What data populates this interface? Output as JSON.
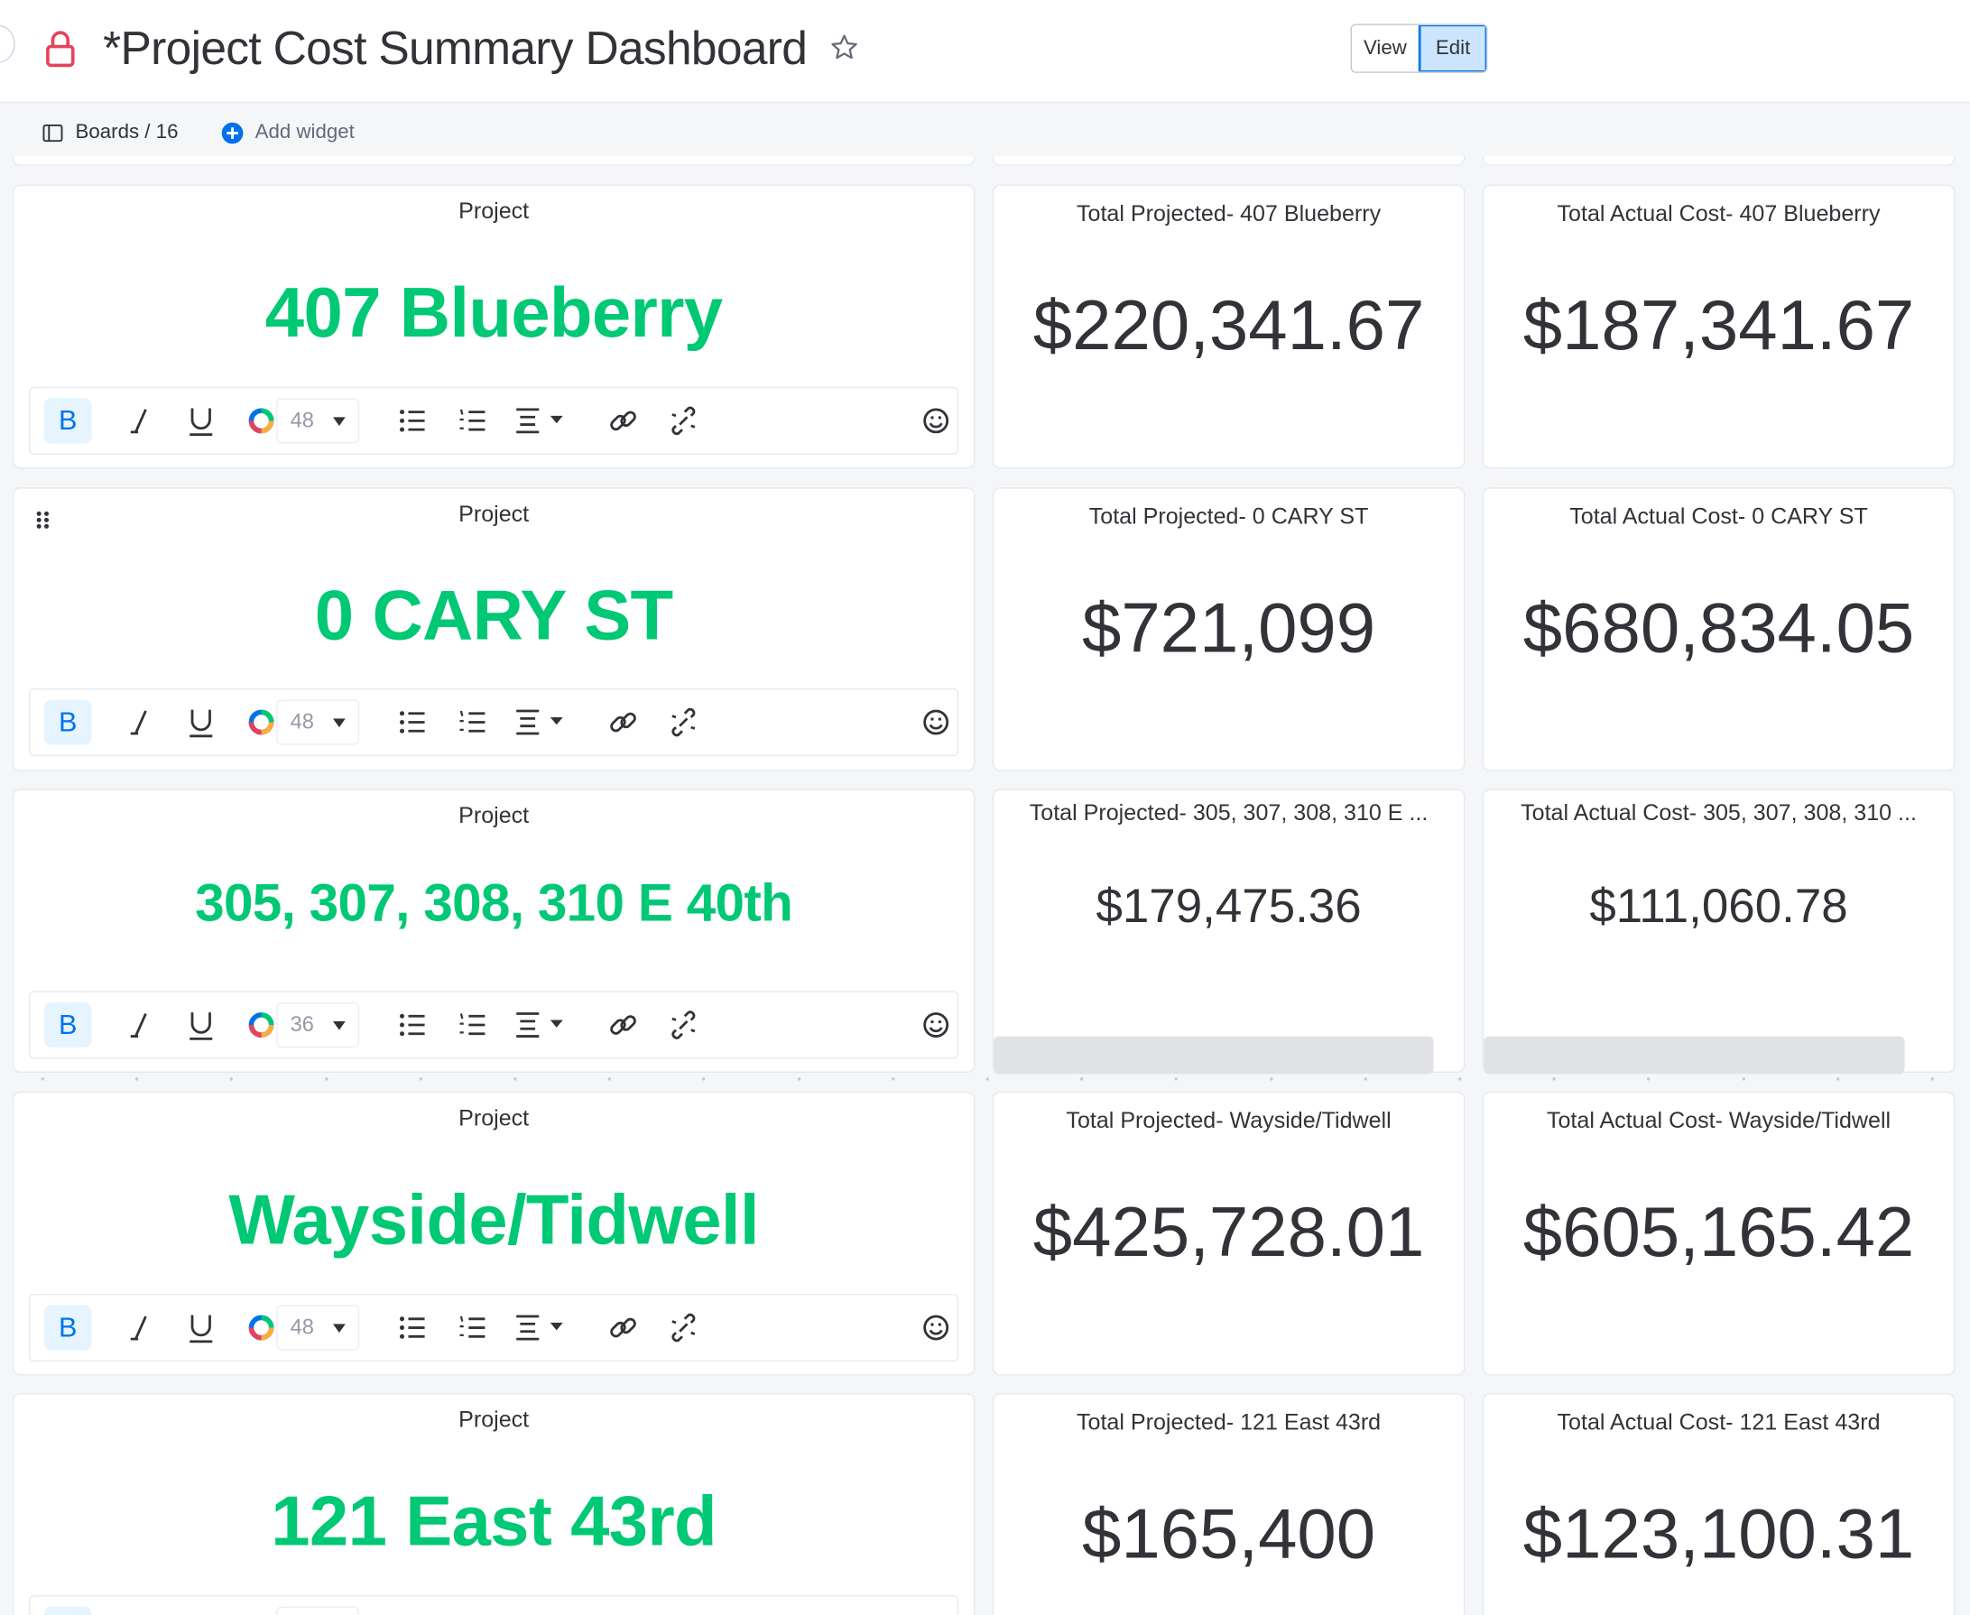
{
  "header": {
    "title": "*Project Cost Summary Dashboard",
    "view_label": "View",
    "edit_label": "Edit"
  },
  "subbar": {
    "boards_label": "Boards / 16",
    "add_widget_label": "Add widget"
  },
  "colors": {
    "project_green": "#00c875",
    "lock_red": "#e2445c",
    "accent_blue": "#0073ea"
  },
  "rows": [
    {
      "project_title": "Project",
      "project_name": "407 Blueberry",
      "font_size": "48",
      "projected_title": "Total Projected- 407 Blueberry",
      "projected_value": "$220,341.67",
      "actual_title": "Total Actual Cost- 407 Blueberry",
      "actual_value": "$187,341.67"
    },
    {
      "project_title": "Project",
      "project_name": "0 CARY ST",
      "font_size": "48",
      "projected_title": "Total Projected- 0 CARY ST",
      "projected_value": "$721,099",
      "actual_title": "Total Actual Cost- 0 CARY ST",
      "actual_value": "$680,834.05"
    },
    {
      "project_title": "Project",
      "project_name": "305, 307, 308, 310 E 40th",
      "font_size": "36",
      "projected_title": "Total Projected- 305, 307, 308, 310 E ...",
      "projected_value": "$179,475.36",
      "actual_title": "Total Actual Cost- 305, 307, 308, 310 ...",
      "actual_value": "$111,060.78"
    },
    {
      "project_title": "Project",
      "project_name": "Wayside/Tidwell",
      "font_size": "48",
      "projected_title": "Total Projected- Wayside/Tidwell",
      "projected_value": "$425,728.01",
      "actual_title": "Total Actual Cost- Wayside/Tidwell",
      "actual_value": "$605,165.42"
    },
    {
      "project_title": "Project",
      "project_name": "121 East 43rd",
      "font_size": "48",
      "projected_title": "Total Projected- 121 East 43rd",
      "projected_value": "$165,400",
      "actual_title": "Total Actual Cost- 121 East 43rd",
      "actual_value": "$123,100.31"
    }
  ],
  "icons": {
    "lock": "lock-icon",
    "star": "star-icon",
    "boards": "board-icon",
    "add": "plus-circle-icon",
    "bold": "bold-icon",
    "italic": "italic-icon",
    "underline": "underline-icon",
    "color": "text-color-icon",
    "bullets": "bulleted-list-icon",
    "numbers": "numbered-list-icon",
    "align": "align-icon",
    "link": "link-icon",
    "unlink": "unlink-icon",
    "emoji": "emoji-icon"
  }
}
